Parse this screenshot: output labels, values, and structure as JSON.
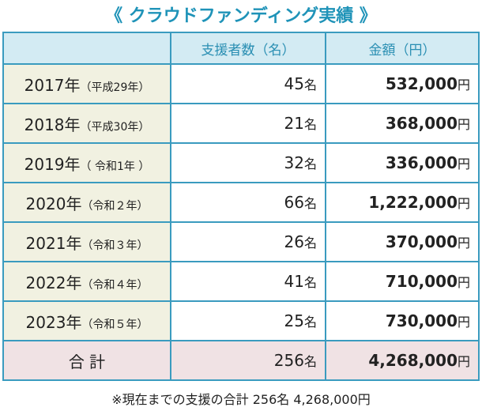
{
  "title": "《 クラウドファンディング実績 》",
  "table": {
    "header": [
      "支援者数（名）",
      "金額（円）"
    ],
    "rows": [
      {
        "year": "2017年",
        "era": "（平成29年）",
        "count": "45",
        "count_unit": "名",
        "amount": "532,000",
        "amount_unit": "円"
      },
      {
        "year": "2018年",
        "era": "（平成30年）",
        "count": "21",
        "count_unit": "名",
        "amount": "368,000",
        "amount_unit": "円"
      },
      {
        "year": "2019年",
        "era": "（ 令和1年 ）",
        "count": "32",
        "count_unit": "名",
        "amount": "336,000",
        "amount_unit": "円"
      },
      {
        "year": "2020年",
        "era": "（令和２年）",
        "count": "66",
        "count_unit": "名",
        "amount": "1,222,000",
        "amount_unit": "円"
      },
      {
        "year": "2021年",
        "era": "（令和３年）",
        "count": "26",
        "count_unit": "名",
        "amount": "370,000",
        "amount_unit": "円"
      },
      {
        "year": "2022年",
        "era": "（令和４年）",
        "count": "41",
        "count_unit": "名",
        "amount": "710,000",
        "amount_unit": "円"
      },
      {
        "year": "2023年",
        "era": "（令和５年）",
        "count": "25",
        "count_unit": "名",
        "amount": "730,000",
        "amount_unit": "円"
      }
    ],
    "total": {
      "label": "合 計",
      "count": "256",
      "count_unit": "名",
      "amount": "4,268,000",
      "amount_unit": "円"
    }
  },
  "footnote": "※現在までの支援の合計 256名 4,268,000円"
}
